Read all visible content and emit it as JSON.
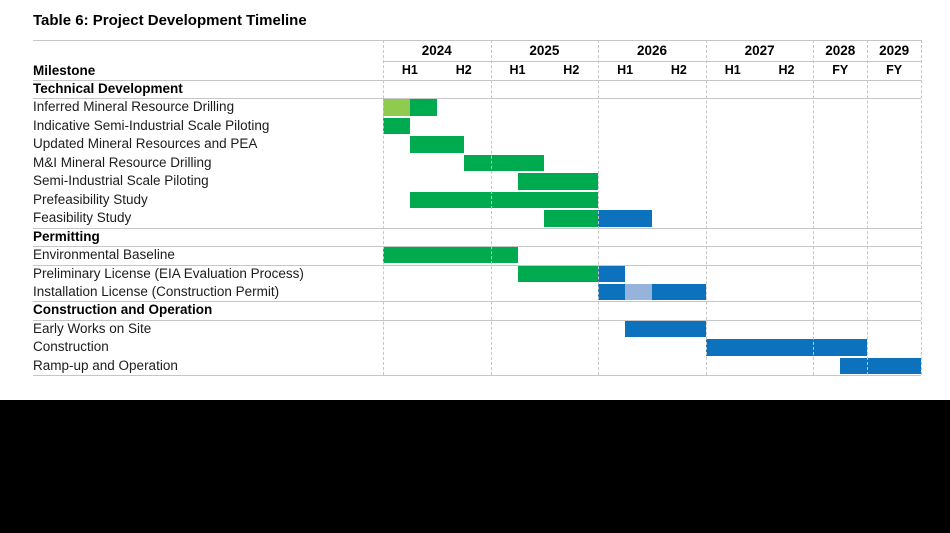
{
  "title": "Table 6: Project Development Timeline",
  "header": {
    "milestone_label": "Milestone",
    "years": [
      {
        "label": "2024",
        "halves": [
          "H1",
          "H2"
        ]
      },
      {
        "label": "2025",
        "halves": [
          "H1",
          "H2"
        ]
      },
      {
        "label": "2026",
        "halves": [
          "H1",
          "H2"
        ]
      },
      {
        "label": "2027",
        "halves": [
          "H1",
          "H2"
        ]
      },
      {
        "label": "2028",
        "halves": [
          "FY"
        ]
      },
      {
        "label": "2029",
        "halves": [
          "FY"
        ]
      }
    ]
  },
  "colors": {
    "green": "#00AB50",
    "light_green": "#8FCB4F",
    "blue": "#0D72BE",
    "light_blue": "#96B4DB",
    "grid_line": "#c6c6c6",
    "text": "#1c1c1c"
  },
  "chart_data": {
    "type": "gantt",
    "title": "Table 6: Project Development Timeline",
    "time_axis": {
      "columns": [
        "2024 H1",
        "2024 H2",
        "2025 H1",
        "2025 H2",
        "2026 H1",
        "2026 H2",
        "2027 H1",
        "2027 H2",
        "2028 FY",
        "2029 FY"
      ],
      "unit_note": "bar start/end are measured in half-year column units from the start of 2024 H1; 0.5 = one quarter"
    },
    "legend_note": "green = exploration/study & permitting work, light_green = initial ramp of drilling, blue = execution phase, light_blue = intermediate licensing step",
    "sections": [
      {
        "label": "Technical Development",
        "tasks": [
          {
            "label": "Inferred Mineral Resource Drilling",
            "bars": [
              {
                "start": 0,
                "end": 0.5,
                "color": "light_green"
              },
              {
                "start": 0.5,
                "end": 1,
                "color": "green"
              }
            ],
            "rule_below": false
          },
          {
            "label": "Indicative Semi-Industrial Scale Piloting",
            "bars": [
              {
                "start": 0,
                "end": 0.5,
                "color": "green"
              }
            ],
            "rule_below": false
          },
          {
            "label": "Updated Mineral Resources and PEA",
            "bars": [
              {
                "start": 0.5,
                "end": 1.5,
                "color": "green"
              }
            ],
            "rule_below": false
          },
          {
            "label": "M&I Mineral Resource Drilling",
            "bars": [
              {
                "start": 1.5,
                "end": 3,
                "color": "green"
              }
            ],
            "rule_below": false
          },
          {
            "label": "Semi-Industrial Scale Piloting",
            "bars": [
              {
                "start": 2.5,
                "end": 4,
                "color": "green"
              }
            ],
            "rule_below": false
          },
          {
            "label": "Prefeasibility Study",
            "bars": [
              {
                "start": 0.5,
                "end": 4,
                "color": "green"
              }
            ],
            "rule_below": false
          },
          {
            "label": "Feasibility Study",
            "bars": [
              {
                "start": 3,
                "end": 4,
                "color": "green"
              },
              {
                "start": 4,
                "end": 5,
                "color": "blue"
              }
            ],
            "rule_below": true
          }
        ]
      },
      {
        "label": "Permitting",
        "tasks": [
          {
            "label": "Environmental Baseline",
            "bars": [
              {
                "start": 0,
                "end": 2.5,
                "color": "green"
              }
            ],
            "rule_below": true
          },
          {
            "label": "Preliminary License (EIA Evaluation Process)",
            "bars": [
              {
                "start": 2.5,
                "end": 4,
                "color": "green"
              },
              {
                "start": 4,
                "end": 4.5,
                "color": "blue"
              }
            ],
            "rule_below": false
          },
          {
            "label": "Installation License (Construction Permit)",
            "bars": [
              {
                "start": 4,
                "end": 4.5,
                "color": "blue"
              },
              {
                "start": 4.5,
                "end": 5,
                "color": "light_blue"
              },
              {
                "start": 5,
                "end": 6,
                "color": "blue"
              }
            ],
            "rule_below": true
          }
        ]
      },
      {
        "label": "Construction and Operation",
        "tasks": [
          {
            "label": "Early Works on Site",
            "bars": [
              {
                "start": 4.5,
                "end": 6,
                "color": "blue"
              }
            ],
            "rule_below": false
          },
          {
            "label": "Construction",
            "bars": [
              {
                "start": 6,
                "end": 9,
                "color": "blue"
              }
            ],
            "rule_below": false
          },
          {
            "label": "Ramp-up and Operation",
            "bars": [
              {
                "start": 8.5,
                "end": 10,
                "color": "blue"
              }
            ],
            "rule_below": false
          }
        ]
      }
    ]
  }
}
